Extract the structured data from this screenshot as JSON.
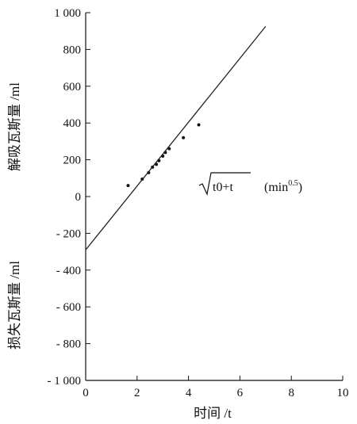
{
  "chart_data": {
    "type": "scatter",
    "xlabel": "时间 /t",
    "ylabel_upper": "解吸瓦斯量 /ml",
    "ylabel_lower": "损失瓦斯量 /ml",
    "xlim": [
      0,
      10
    ],
    "ylim": [
      -1000,
      1000
    ],
    "x_ticks": [
      0,
      2,
      4,
      6,
      8,
      10
    ],
    "y_ticks": [
      1000,
      800,
      600,
      400,
      200,
      0,
      -200,
      -400,
      -600,
      -800,
      -1000
    ],
    "x_tick_labels": [
      "0",
      "2",
      "4",
      "6",
      "8",
      "10"
    ],
    "y_tick_labels": [
      "1 000",
      "800",
      "600",
      "400",
      "200",
      "0",
      "- 200",
      "- 400",
      "- 600",
      "- 800",
      "- 1 000"
    ],
    "grid": false,
    "annotation": {
      "radical_text": "t0+t",
      "unit_text": "(min",
      "unit_exp": "0.5",
      "unit_close": ")"
    },
    "series": [
      {
        "type": "scatter",
        "points": [
          {
            "x": 1.65,
            "y": 60
          },
          {
            "x": 2.2,
            "y": 95
          },
          {
            "x": 2.45,
            "y": 130
          },
          {
            "x": 2.6,
            "y": 160
          },
          {
            "x": 2.75,
            "y": 175
          },
          {
            "x": 2.85,
            "y": 195
          },
          {
            "x": 3.0,
            "y": 220
          },
          {
            "x": 3.1,
            "y": 240
          },
          {
            "x": 3.25,
            "y": 260
          },
          {
            "x": 3.8,
            "y": 320
          },
          {
            "x": 4.4,
            "y": 390
          }
        ]
      },
      {
        "type": "line",
        "points": [
          {
            "x": 0,
            "y": -290
          },
          {
            "x": 7.0,
            "y": 925
          }
        ]
      }
    ]
  }
}
